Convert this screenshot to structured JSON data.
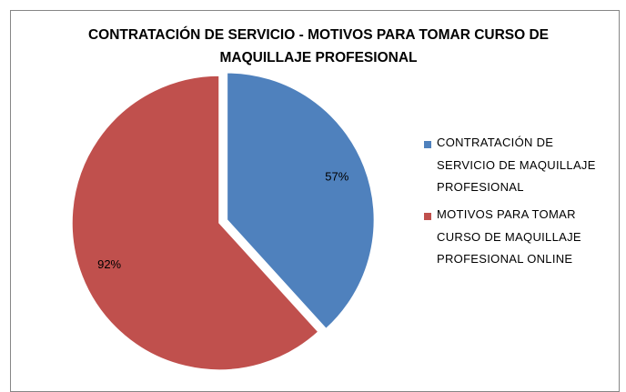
{
  "chart_data": {
    "type": "pie",
    "title": "CONTRATACIÓN DE SERVICIO - MOTIVOS PARA TOMAR CURSO DE MAQUILLAJE PROFESIONAL",
    "categories": [
      "CONTRATACIÓN DE SERVICIO DE MAQUILLAJE PROFESIONAL",
      "MOTIVOS PARA TOMAR CURSO DE MAQUILLAJE PROFESIONAL ONLINE"
    ],
    "values": [
      57,
      92
    ],
    "value_labels": [
      "57%",
      "92%"
    ],
    "colors": [
      "#4f81bd",
      "#c0504d"
    ],
    "legend": "right"
  }
}
